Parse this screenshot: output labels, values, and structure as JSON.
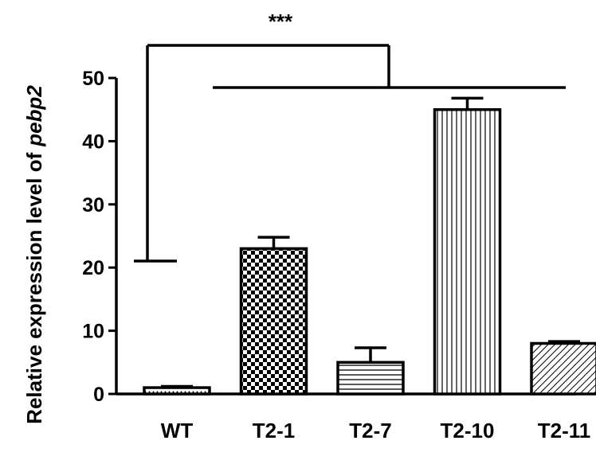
{
  "chart_data": {
    "type": "bar",
    "categories": [
      "WT",
      "T2-1",
      "T2-7",
      "T2-10",
      "T2-11"
    ],
    "values": [
      1,
      23,
      5,
      45,
      8
    ],
    "errors": [
      0.2,
      1.8,
      2.3,
      1.8,
      0.3
    ],
    "fill_patterns": [
      "dots",
      "checker",
      "horizontal-lines",
      "vertical-lines",
      "diagonal-lines"
    ],
    "ylabel": "Relative expression level of",
    "ylabel_italic": "pebp2",
    "ylim": [
      0,
      50
    ],
    "yticks": [
      0,
      10,
      20,
      30,
      40,
      50
    ],
    "significance": {
      "label": "***",
      "group_a": [
        "WT"
      ],
      "group_b": [
        "T2-1",
        "T2-7",
        "T2-10",
        "T2-11"
      ]
    },
    "grid": false,
    "legend": "none"
  }
}
